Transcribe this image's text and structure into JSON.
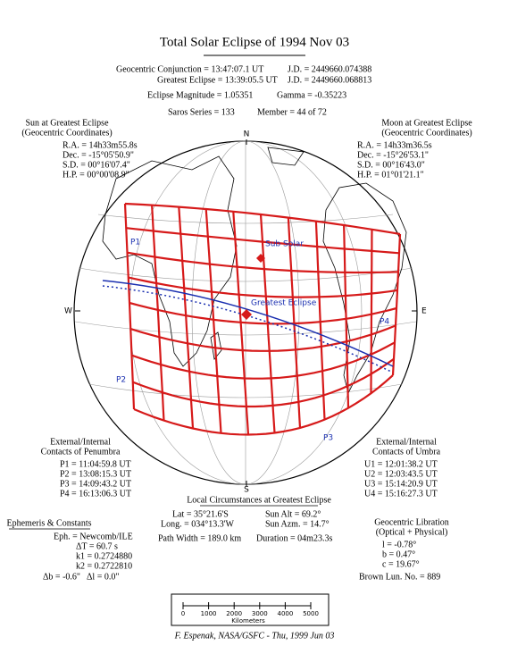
{
  "title": "Total Solar Eclipse of 1994 Nov 03",
  "header": {
    "conjunction": "Geocentric Conjunction = 13:47:07.1 UT",
    "conjunction_jd": "J.D. = 2449660.074388",
    "greatest": "Greatest Eclipse = 13:39:05.5 UT",
    "greatest_jd": "J.D. = 2449660.068813",
    "magnitude": "Eclipse Magnitude = 1.05351",
    "gamma": "Gamma = -0.35223",
    "saros": "Saros Series = 133",
    "member": "Member = 44 of 72"
  },
  "sun": {
    "title": [
      "Sun at Greatest Eclipse",
      "(Geocentric Coordinates)"
    ],
    "lines": [
      "R.A. = 14h33m55.8s",
      "Dec. = -15°05'50.9\"",
      "S.D. = 00°16'07.4\"",
      "H.P. = 00°00'08.9\""
    ]
  },
  "moon": {
    "title": [
      "Moon at Greatest Eclipse",
      "(Geocentric Coordinates)"
    ],
    "lines": [
      "R.A. = 14h33m36.5s",
      "Dec. = -15°26'53.1\"",
      "S.D. = 00°16'43.0\"",
      "H.P. = 01°01'21.1\""
    ]
  },
  "compass": {
    "north": "N",
    "south": "S",
    "east": "E",
    "west": "W"
  },
  "map_labels": {
    "p1": "P1",
    "p2": "P2",
    "p3": "P3",
    "p4": "P4",
    "sub_solar": "Sub Solar",
    "greatest": "Greatest Eclipse"
  },
  "penumbra": {
    "title": [
      "External/Internal",
      "Contacts of Penumbra"
    ],
    "lines": [
      "P1 = 11:04:59.8 UT",
      "P2 = 13:08:15.3 UT",
      "P3 = 14:09:43.2 UT",
      "P4 = 16:13:06.3 UT"
    ]
  },
  "umbra": {
    "title": [
      "External/Internal",
      "Contacts of Umbra"
    ],
    "lines": [
      "U1 = 12:01:38.2 UT",
      "U2 = 12:03:43.5 UT",
      "U3 = 15:14:20.9 UT",
      "U4 = 15:16:27.3 UT"
    ]
  },
  "local": {
    "title": "Local Circumstances at Greatest Eclipse",
    "lat": "Lat = 35°21.6'S",
    "sun_alt": "Sun Alt = 69.2°",
    "long": "Long. = 034°13.3'W",
    "sun_azm": "Sun Azm. = 14.7°",
    "path_width": "Path Width = 189.0 km",
    "duration": "Duration = 04m23.3s"
  },
  "ephemeris": {
    "title": "Ephemeris & Constants",
    "eph": "Eph. = Newcomb/ILE",
    "delta_t": "ΔT = 60.7 s",
    "k1": "k1 = 0.2724880",
    "k2": "k2 = 0.2722810",
    "delta_b": "Δb = -0.6\"",
    "delta_l": "Δl = 0.0\""
  },
  "libration": {
    "title": [
      "Geocentric Libration",
      "(Optical + Physical)"
    ],
    "lines": [
      "l = -0.78°",
      "b = 0.47°",
      "c = 19.67°"
    ],
    "brown": "Brown Lun. No. = 889"
  },
  "scale_bar": {
    "ticks": [
      0,
      1000,
      2000,
      3000,
      4000,
      5000
    ],
    "unit": "Kilometers"
  },
  "footer": "F. Espenak, NASA/GSFC - Thu, 1999 Jun 03"
}
